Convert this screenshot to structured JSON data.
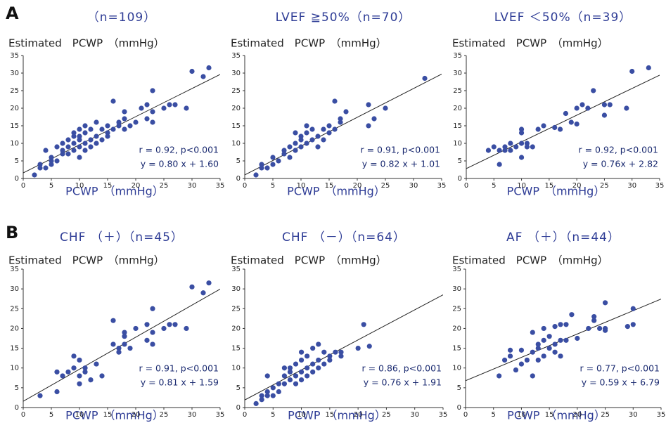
{
  "panel_labels": [
    "A",
    "B"
  ],
  "chart_data": [
    {
      "type": "scatter",
      "title": "（n=109）",
      "ylabel": "Estimated　PCWP　（mmHg）",
      "xlabel": "PCWP　（mmHg）",
      "color": "#3a4ea3",
      "annotations": [
        "r = 0.92, p<0.001",
        "y = 0.80 x + 1.60"
      ],
      "fit": {
        "slope": 0.8,
        "intercept": 1.6
      },
      "xlim": [
        0,
        35
      ],
      "ylim": [
        0,
        35
      ],
      "xticks": [
        0,
        5,
        10,
        15,
        20,
        25,
        30,
        35
      ],
      "yticks": [
        0,
        5,
        10,
        15,
        20,
        25,
        30,
        35
      ],
      "x": [
        2,
        3,
        3,
        4,
        4,
        5,
        5,
        5,
        6,
        6,
        7,
        7,
        7,
        8,
        8,
        8,
        9,
        9,
        9,
        9,
        10,
        10,
        10,
        10,
        10,
        11,
        11,
        11,
        11,
        12,
        12,
        12,
        13,
        13,
        13,
        14,
        14,
        15,
        15,
        15,
        16,
        16,
        17,
        17,
        18,
        18,
        18,
        19,
        20,
        21,
        22,
        22,
        23,
        23,
        23,
        25,
        26,
        27,
        29,
        30,
        32,
        33
      ],
      "values": [
        1,
        3,
        4,
        3,
        8,
        4,
        6,
        5,
        9,
        5,
        8,
        10,
        7,
        9,
        11,
        7,
        10,
        13,
        8,
        12,
        9,
        14,
        11,
        12,
        6,
        10,
        15,
        8,
        13,
        9,
        14,
        11,
        12,
        16,
        10,
        14,
        11,
        13,
        15,
        12,
        22,
        14,
        15,
        16,
        19,
        17,
        14,
        15,
        16,
        20,
        21,
        17,
        25,
        16,
        19,
        20,
        21,
        21,
        20,
        30.5,
        29,
        31.5
      ]
    },
    {
      "type": "scatter",
      "title": "LVEF ≧50%（n=70）",
      "ylabel": "Estimated　PCWP　（mmHg）",
      "xlabel": "PCWP　（mmHg）",
      "color": "#3a4ea3",
      "annotations": [
        "r = 0.91, p<0.001",
        "y = 0.82 x + 1.01"
      ],
      "fit": {
        "slope": 0.82,
        "intercept": 1.01
      },
      "xlim": [
        0,
        35
      ],
      "ylim": [
        0,
        35
      ],
      "xticks": [
        0,
        5,
        10,
        15,
        20,
        25,
        30,
        35
      ],
      "yticks": [
        0,
        5,
        10,
        15,
        20,
        25,
        30,
        35
      ],
      "x": [
        2,
        3,
        3,
        4,
        5,
        5,
        6,
        7,
        7,
        8,
        8,
        9,
        9,
        9,
        10,
        10,
        10,
        11,
        11,
        11,
        12,
        12,
        13,
        13,
        14,
        14,
        15,
        15,
        16,
        16,
        17,
        17,
        18,
        22,
        22,
        23,
        25,
        32
      ],
      "values": [
        1,
        3,
        4,
        3,
        6,
        4,
        5,
        8,
        7,
        9,
        6,
        13,
        10,
        8,
        11,
        9,
        12,
        15,
        10,
        13,
        11,
        14,
        12,
        9,
        14,
        11,
        13,
        15,
        22,
        14,
        16,
        17,
        19,
        21,
        15,
        17,
        20,
        28.5
      ]
    },
    {
      "type": "scatter",
      "title": "LVEF ＜50%（n=39）",
      "ylabel": "Estimated　PCWP　（mmHg）",
      "xlabel": "PCWP　（mmHg）",
      "color": "#3a4ea3",
      "annotations": [
        "r = 0.92, p<0.001",
        "y = 0.76x + 2.82"
      ],
      "fit": {
        "slope": 0.76,
        "intercept": 2.82
      },
      "xlim": [
        0,
        35
      ],
      "ylim": [
        0,
        35
      ],
      "xticks": [
        0,
        5,
        10,
        15,
        20,
        25,
        30,
        35
      ],
      "yticks": [
        0,
        5,
        10,
        15,
        20,
        25,
        30,
        35
      ],
      "x": [
        4,
        5,
        6,
        6,
        7,
        7,
        8,
        8,
        9,
        10,
        10,
        10,
        10,
        11,
        11,
        12,
        13,
        14,
        16,
        17,
        18,
        19,
        20,
        20,
        21,
        22,
        23,
        25,
        25,
        26,
        29,
        30,
        33
      ],
      "values": [
        8,
        9,
        4,
        8,
        9,
        8,
        10,
        8,
        9,
        13,
        10,
        14,
        6,
        10,
        9,
        9,
        14,
        15,
        14.5,
        14,
        18.5,
        16,
        15.5,
        20,
        21,
        20,
        25,
        18,
        21,
        21,
        20,
        30.5,
        31.5
      ]
    },
    {
      "type": "scatter",
      "title": "CHF （＋）（n=45）",
      "ylabel": "Estimated　PCWP　（mmHg）",
      "xlabel": "PCWP　（mmHg）",
      "color": "#3a4ea3",
      "annotations": [
        "r = 0.91, p<0.001",
        "y = 0.81 x + 1.59"
      ],
      "fit": {
        "slope": 0.81,
        "intercept": 1.59
      },
      "xlim": [
        0,
        35
      ],
      "ylim": [
        0,
        35
      ],
      "xticks": [
        0,
        5,
        10,
        15,
        20,
        25,
        30,
        35
      ],
      "yticks": [
        0,
        5,
        10,
        15,
        20,
        25,
        30,
        35
      ],
      "x": [
        3,
        6,
        6,
        7,
        8,
        9,
        9,
        10,
        10,
        10,
        11,
        11,
        12,
        13,
        14,
        16,
        16,
        17,
        17,
        18,
        18,
        18,
        19,
        20,
        22,
        22,
        23,
        23,
        23,
        25,
        26,
        27,
        29,
        30,
        32,
        33
      ],
      "values": [
        3,
        4,
        9,
        8,
        9,
        13,
        10,
        12,
        8,
        6,
        10,
        9,
        7,
        11,
        8,
        22,
        16,
        14,
        15,
        19,
        16,
        18,
        15,
        20,
        17,
        21,
        16,
        19,
        25,
        20,
        21,
        21,
        20,
        30.5,
        29,
        31.5
      ]
    },
    {
      "type": "scatter",
      "title": "CHF （－）（n=64）",
      "ylabel": "Estimated　PCWP　（mmHg）",
      "xlabel": "PCWP　（mmHg）",
      "color": "#3a4ea3",
      "annotations": [
        "r = 0.86, p<0.001",
        "y = 0.76 x + 1.91"
      ],
      "fit": {
        "slope": 0.76,
        "intercept": 1.91
      },
      "xlim": [
        0,
        35
      ],
      "ylim": [
        0,
        35
      ],
      "xticks": [
        0,
        5,
        10,
        15,
        20,
        25,
        30,
        35
      ],
      "yticks": [
        0,
        5,
        10,
        15,
        20,
        25,
        30,
        35
      ],
      "x": [
        2,
        3,
        3,
        4,
        4,
        4,
        5,
        5,
        6,
        6,
        7,
        7,
        7,
        8,
        8,
        8,
        9,
        9,
        9,
        10,
        10,
        10,
        10,
        11,
        11,
        11,
        12,
        12,
        12,
        13,
        13,
        13,
        14,
        14,
        15,
        15,
        16,
        17,
        17,
        20,
        21,
        22
      ],
      "values": [
        1,
        2,
        3,
        3,
        4,
        8,
        5,
        3,
        6,
        4,
        8,
        10,
        6,
        9,
        7,
        10,
        8,
        11,
        6,
        9,
        12,
        14,
        7,
        10,
        13,
        8,
        11,
        15,
        9,
        12,
        16,
        10,
        14,
        11,
        13,
        12,
        14,
        13,
        14,
        15,
        21,
        15.5
      ]
    },
    {
      "type": "scatter",
      "title": "AF （＋）（n=44）",
      "ylabel": "Estimated　PCWP　（mmHg）",
      "xlabel": "PCWP　（mmHg）",
      "color": "#3a4ea3",
      "annotations": [
        "r = 0.77, p<0.001",
        "y = 0.59 x + 6.79"
      ],
      "fit": {
        "slope": 0.59,
        "intercept": 6.79
      },
      "xlim": [
        0,
        35
      ],
      "ylim": [
        0,
        35
      ],
      "xticks": [
        0,
        5,
        10,
        15,
        20,
        25,
        30,
        35
      ],
      "yticks": [
        0,
        5,
        10,
        15,
        20,
        25,
        30,
        35
      ],
      "x": [
        6,
        7,
        8,
        8,
        9,
        10,
        10,
        11,
        12,
        12,
        12,
        13,
        13,
        13,
        14,
        14,
        14,
        15,
        15,
        16,
        16,
        16,
        17,
        17,
        17,
        18,
        18,
        19,
        20,
        22,
        23,
        23,
        24,
        25,
        25,
        25,
        29,
        30,
        30
      ],
      "values": [
        8,
        12,
        13,
        14.5,
        9.5,
        14.5,
        11,
        12,
        19,
        14,
        8,
        15,
        16,
        12,
        20,
        17,
        13,
        15,
        18,
        16,
        20.5,
        14,
        21,
        17,
        13,
        17,
        21,
        23.5,
        17.5,
        20,
        22,
        23,
        20,
        26.5,
        20,
        19.5,
        20.5,
        25,
        21
      ]
    }
  ]
}
